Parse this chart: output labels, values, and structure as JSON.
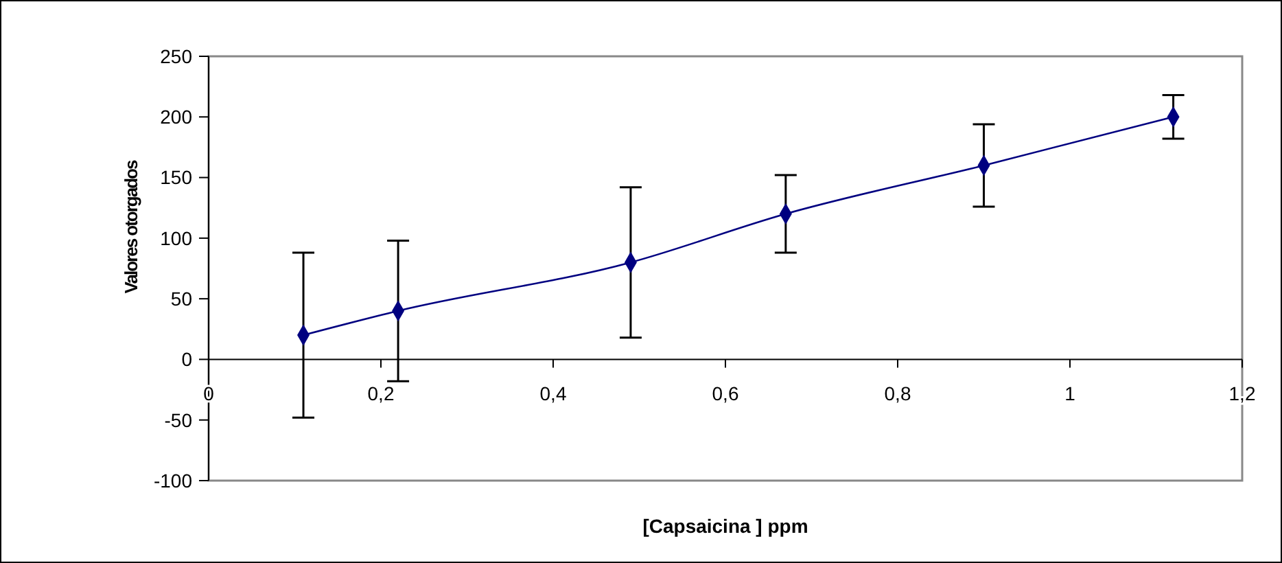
{
  "chart_data": {
    "type": "line",
    "xlabel": "[Capsaicina ] ppm",
    "ylabel": "Valores otorgados",
    "x": [
      0.11,
      0.22,
      0.49,
      0.67,
      0.9,
      1.12
    ],
    "series": [
      {
        "color": "#000080",
        "values": [
          20,
          40,
          80,
          120,
          160,
          200
        ],
        "errors": [
          68,
          58,
          62,
          32,
          34,
          18
        ]
      }
    ],
    "xlim": [
      0,
      1.2
    ],
    "xticks": [
      {
        "value": 0,
        "label": "0"
      },
      {
        "value": 0.2,
        "label": "0,2"
      },
      {
        "value": 0.4,
        "label": "0,4"
      },
      {
        "value": 0.6,
        "label": "0,6"
      },
      {
        "value": 0.8,
        "label": "0,8"
      },
      {
        "value": 1,
        "label": "1"
      },
      {
        "value": 1.2,
        "label": "1,2"
      }
    ],
    "ylim": [
      -100,
      250
    ],
    "yticks": [
      -100,
      -50,
      0,
      50,
      100,
      150,
      200,
      250
    ],
    "grid": false,
    "marker": "diamond",
    "line_style": "solid"
  }
}
